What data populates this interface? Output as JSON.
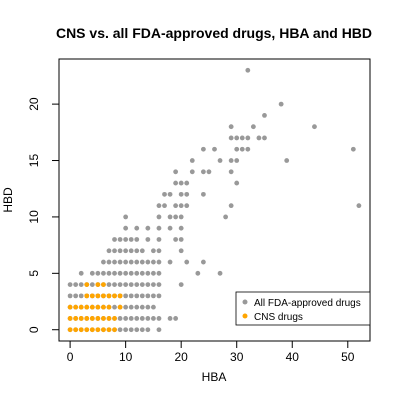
{
  "chart_data": {
    "type": "scatter",
    "title": "CNS vs. all FDA-approved drugs, HBA and HBD",
    "xlabel": "HBA",
    "ylabel": "HBD",
    "xlim": [
      -2,
      54
    ],
    "ylim": [
      -1,
      24
    ],
    "xticks": [
      0,
      10,
      20,
      30,
      40,
      50
    ],
    "yticks": [
      0,
      5,
      10,
      15,
      20
    ],
    "grid": false,
    "legend": "bottom-right",
    "series": [
      {
        "name": "All FDA-approved drugs",
        "color": "#999999",
        "points": [
          [
            0,
            0
          ],
          [
            1,
            0
          ],
          [
            2,
            0
          ],
          [
            3,
            0
          ],
          [
            4,
            0
          ],
          [
            5,
            0
          ],
          [
            6,
            0
          ],
          [
            7,
            0
          ],
          [
            8,
            0
          ],
          [
            9,
            0
          ],
          [
            10,
            0
          ],
          [
            11,
            0
          ],
          [
            12,
            0
          ],
          [
            13,
            0
          ],
          [
            14,
            0
          ],
          [
            16,
            0
          ],
          [
            0,
            1
          ],
          [
            1,
            1
          ],
          [
            2,
            1
          ],
          [
            3,
            1
          ],
          [
            4,
            1
          ],
          [
            5,
            1
          ],
          [
            6,
            1
          ],
          [
            7,
            1
          ],
          [
            8,
            1
          ],
          [
            9,
            1
          ],
          [
            10,
            1
          ],
          [
            11,
            1
          ],
          [
            12,
            1
          ],
          [
            13,
            1
          ],
          [
            14,
            1
          ],
          [
            15,
            1
          ],
          [
            16,
            1
          ],
          [
            18,
            1
          ],
          [
            19,
            1
          ],
          [
            0,
            2
          ],
          [
            1,
            2
          ],
          [
            2,
            2
          ],
          [
            3,
            2
          ],
          [
            4,
            2
          ],
          [
            5,
            2
          ],
          [
            6,
            2
          ],
          [
            7,
            2
          ],
          [
            8,
            2
          ],
          [
            9,
            2
          ],
          [
            10,
            2
          ],
          [
            11,
            2
          ],
          [
            12,
            2
          ],
          [
            13,
            2
          ],
          [
            14,
            2
          ],
          [
            15,
            2
          ],
          [
            0,
            3
          ],
          [
            1,
            3
          ],
          [
            2,
            3
          ],
          [
            3,
            3
          ],
          [
            4,
            3
          ],
          [
            5,
            3
          ],
          [
            6,
            3
          ],
          [
            7,
            3
          ],
          [
            8,
            3
          ],
          [
            9,
            3
          ],
          [
            10,
            3
          ],
          [
            11,
            3
          ],
          [
            12,
            3
          ],
          [
            13,
            3
          ],
          [
            14,
            3
          ],
          [
            15,
            3
          ],
          [
            16,
            3
          ],
          [
            0,
            4
          ],
          [
            1,
            4
          ],
          [
            2,
            4
          ],
          [
            3,
            4
          ],
          [
            4,
            4
          ],
          [
            5,
            4
          ],
          [
            6,
            4
          ],
          [
            7,
            4
          ],
          [
            8,
            4
          ],
          [
            9,
            4
          ],
          [
            10,
            4
          ],
          [
            11,
            4
          ],
          [
            12,
            4
          ],
          [
            13,
            4
          ],
          [
            14,
            4
          ],
          [
            15,
            4
          ],
          [
            16,
            4
          ],
          [
            20,
            4
          ],
          [
            2,
            5
          ],
          [
            4,
            5
          ],
          [
            5,
            5
          ],
          [
            6,
            5
          ],
          [
            7,
            5
          ],
          [
            8,
            5
          ],
          [
            9,
            5
          ],
          [
            10,
            5
          ],
          [
            11,
            5
          ],
          [
            12,
            5
          ],
          [
            13,
            5
          ],
          [
            14,
            5
          ],
          [
            15,
            5
          ],
          [
            16,
            5
          ],
          [
            23,
            5
          ],
          [
            27,
            5
          ],
          [
            6,
            6
          ],
          [
            7,
            6
          ],
          [
            8,
            6
          ],
          [
            9,
            6
          ],
          [
            10,
            6
          ],
          [
            11,
            6
          ],
          [
            12,
            6
          ],
          [
            13,
            6
          ],
          [
            14,
            6
          ],
          [
            15,
            6
          ],
          [
            16,
            6
          ],
          [
            18,
            6
          ],
          [
            21,
            6
          ],
          [
            24,
            6
          ],
          [
            7,
            7
          ],
          [
            8,
            7
          ],
          [
            9,
            7
          ],
          [
            10,
            7
          ],
          [
            11,
            7
          ],
          [
            12,
            7
          ],
          [
            13,
            7
          ],
          [
            15,
            7
          ],
          [
            16,
            7
          ],
          [
            20,
            7
          ],
          [
            8,
            8
          ],
          [
            9,
            8
          ],
          [
            10,
            8
          ],
          [
            11,
            8
          ],
          [
            12,
            8
          ],
          [
            14,
            8
          ],
          [
            16,
            8
          ],
          [
            19,
            8
          ],
          [
            20,
            8
          ],
          [
            10,
            9
          ],
          [
            12,
            9
          ],
          [
            14,
            9
          ],
          [
            16,
            9
          ],
          [
            18,
            9
          ],
          [
            20,
            9
          ],
          [
            10,
            10
          ],
          [
            16,
            10
          ],
          [
            18,
            10
          ],
          [
            19,
            10
          ],
          [
            20,
            10
          ],
          [
            28,
            10
          ],
          [
            16,
            11
          ],
          [
            17,
            11
          ],
          [
            19,
            11
          ],
          [
            20,
            11
          ],
          [
            21,
            11
          ],
          [
            29,
            11
          ],
          [
            17,
            12
          ],
          [
            18,
            12
          ],
          [
            20,
            12
          ],
          [
            21,
            12
          ],
          [
            24,
            12
          ],
          [
            19,
            13
          ],
          [
            20,
            13
          ],
          [
            21,
            13
          ],
          [
            30,
            13
          ],
          [
            19,
            14
          ],
          [
            22,
            14
          ],
          [
            24,
            14
          ],
          [
            25,
            14
          ],
          [
            29,
            14
          ],
          [
            22,
            15
          ],
          [
            27,
            15
          ],
          [
            29,
            15
          ],
          [
            30,
            15
          ],
          [
            39,
            15
          ],
          [
            24,
            16
          ],
          [
            26,
            16
          ],
          [
            30,
            16
          ],
          [
            31,
            16
          ],
          [
            32,
            16
          ],
          [
            51,
            16
          ],
          [
            29,
            17
          ],
          [
            30,
            17
          ],
          [
            31,
            17
          ],
          [
            32,
            17
          ],
          [
            34,
            17
          ],
          [
            35,
            17
          ],
          [
            29,
            18
          ],
          [
            33,
            18
          ],
          [
            44,
            18
          ],
          [
            35,
            19
          ],
          [
            38,
            20
          ],
          [
            32,
            23
          ],
          [
            52,
            11
          ]
        ]
      },
      {
        "name": "CNS drugs",
        "color": "#FFA500",
        "points": [
          [
            0,
            0
          ],
          [
            1,
            0
          ],
          [
            2,
            0
          ],
          [
            3,
            0
          ],
          [
            4,
            0
          ],
          [
            5,
            0
          ],
          [
            6,
            0
          ],
          [
            7,
            0
          ],
          [
            8,
            0
          ],
          [
            0,
            1
          ],
          [
            1,
            1
          ],
          [
            2,
            1
          ],
          [
            3,
            1
          ],
          [
            4,
            1
          ],
          [
            5,
            1
          ],
          [
            6,
            1
          ],
          [
            7,
            1
          ],
          [
            8,
            1
          ],
          [
            0,
            2
          ],
          [
            1,
            2
          ],
          [
            2,
            2
          ],
          [
            3,
            2
          ],
          [
            4,
            2
          ],
          [
            5,
            2
          ],
          [
            6,
            2
          ],
          [
            7,
            2
          ],
          [
            9,
            2
          ],
          [
            3,
            3
          ],
          [
            4,
            3
          ],
          [
            5,
            3
          ],
          [
            6,
            3
          ],
          [
            7,
            3
          ],
          [
            8,
            3
          ],
          [
            9,
            3
          ],
          [
            3,
            4
          ],
          [
            5,
            4
          ],
          [
            6,
            4
          ]
        ]
      }
    ]
  }
}
